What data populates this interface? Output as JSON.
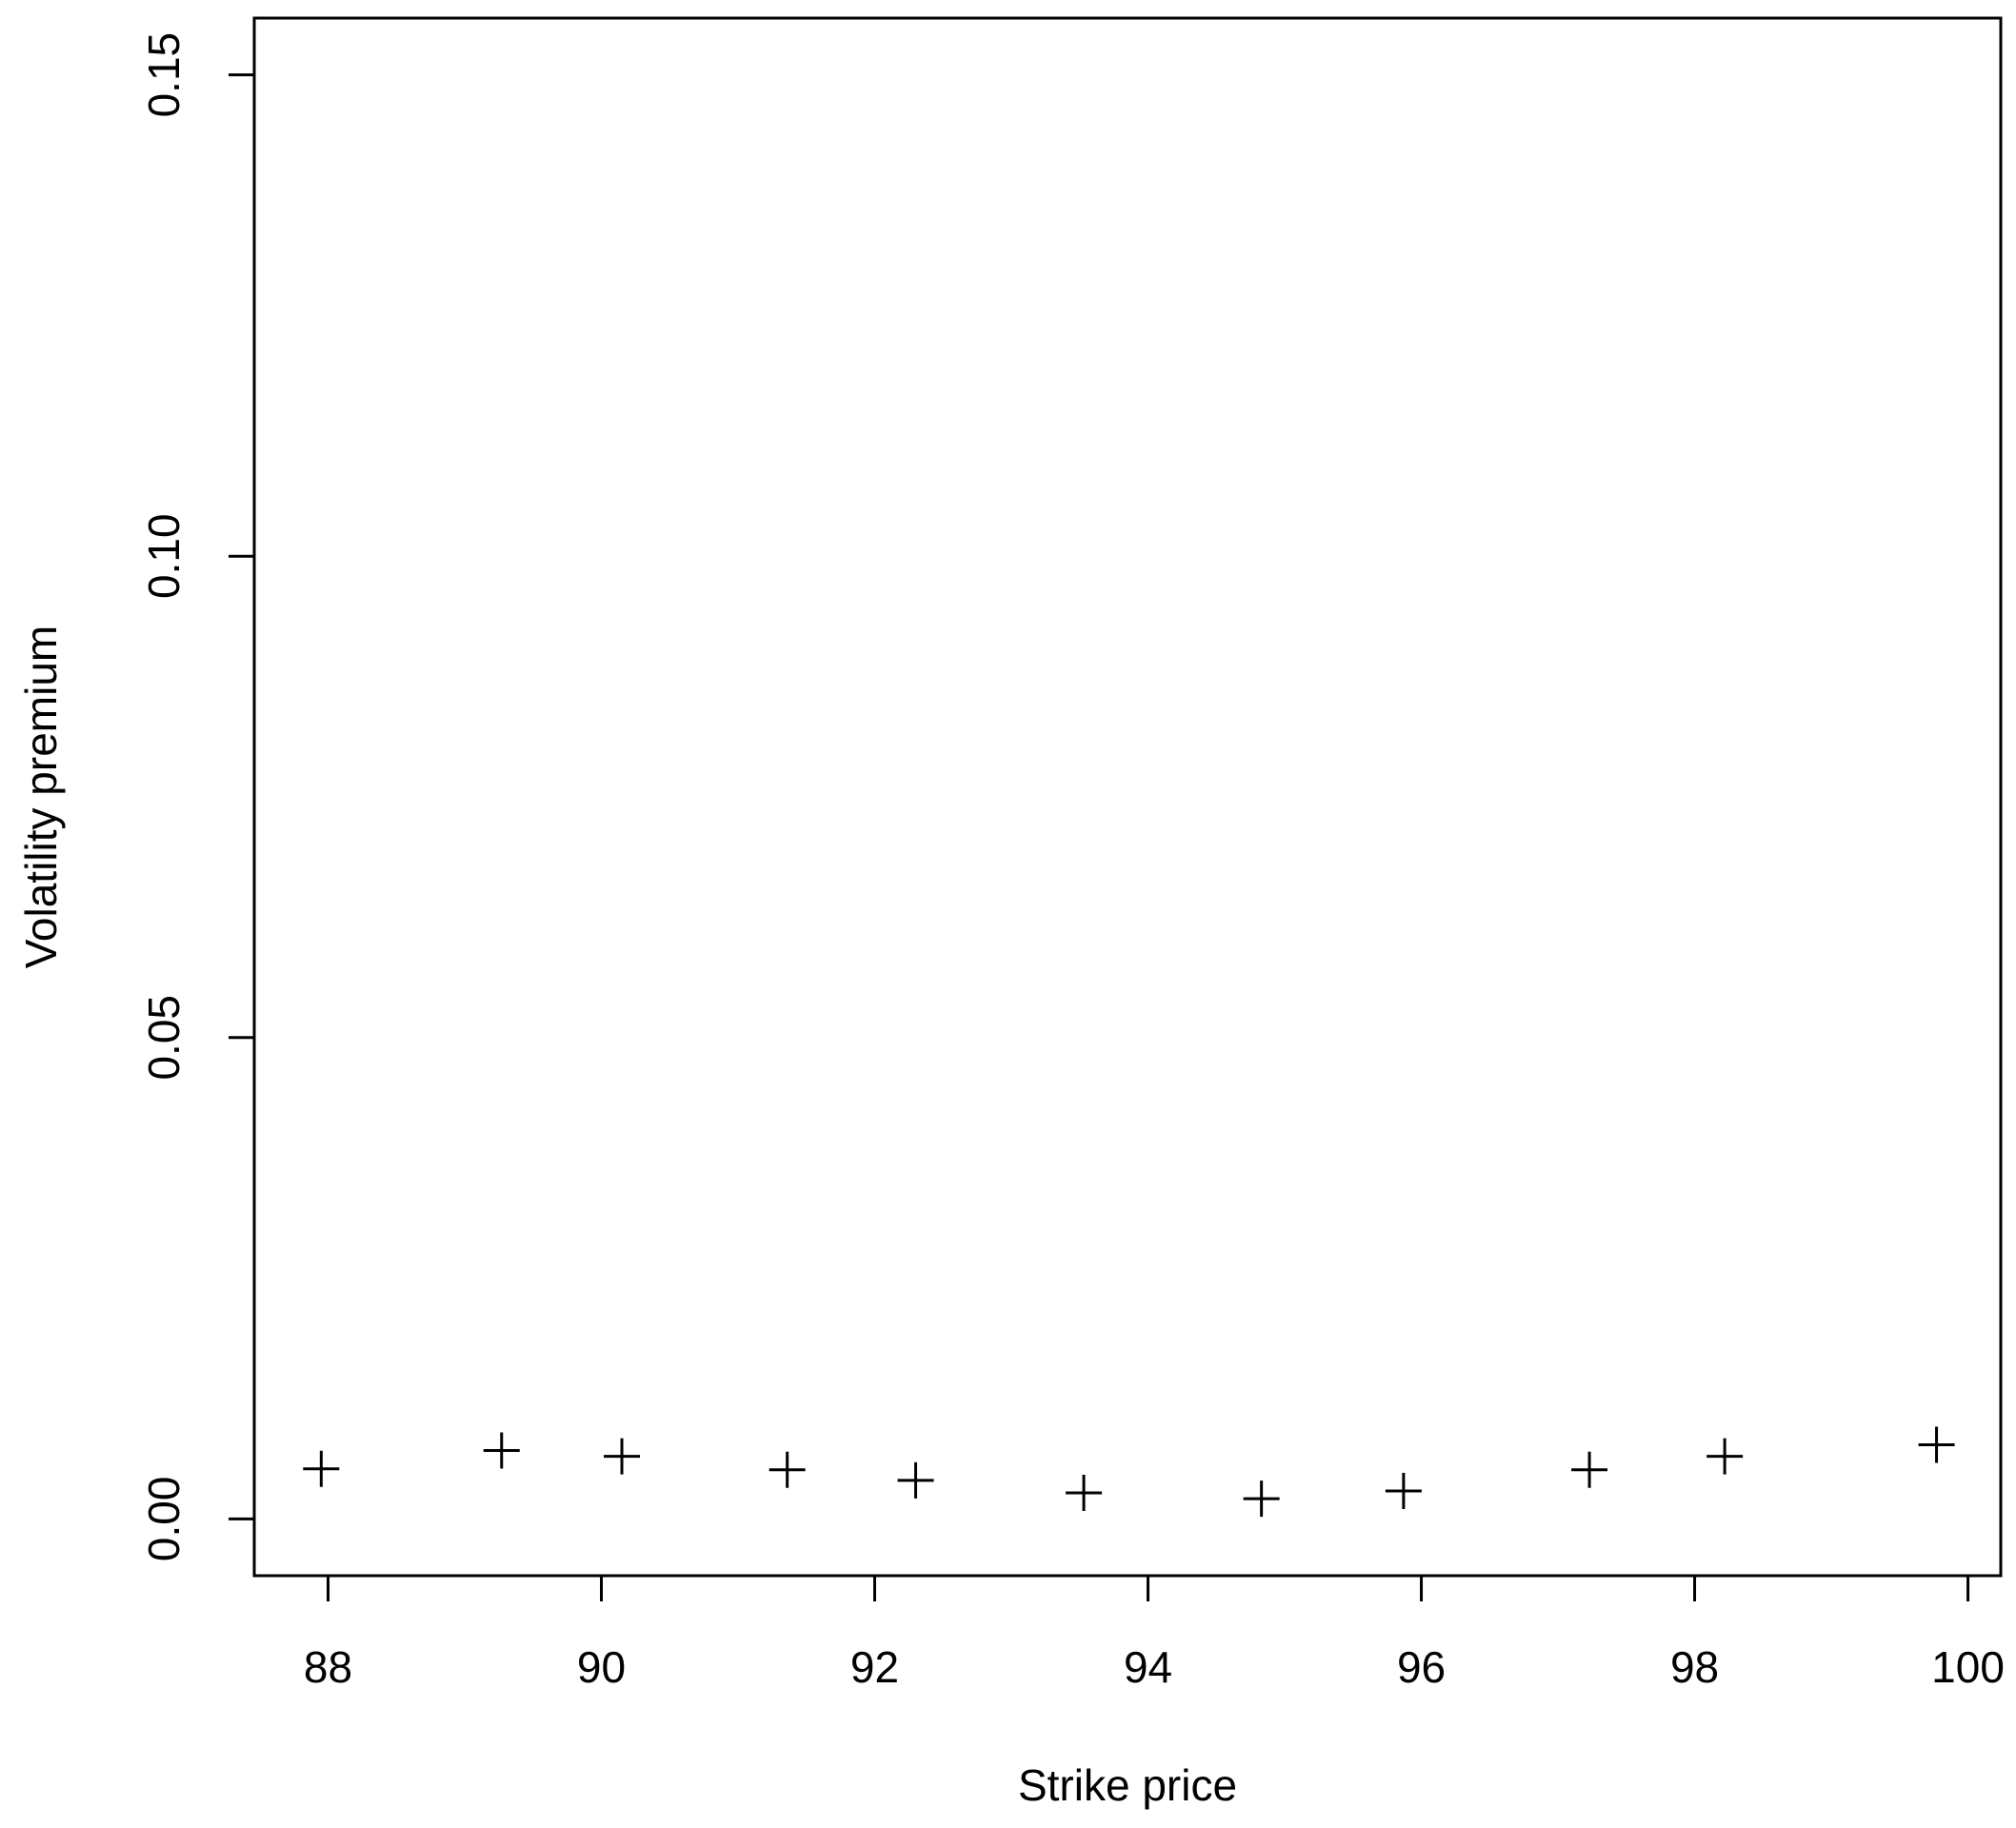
{
  "chart_data": {
    "type": "scatter",
    "x_label": "Strike price",
    "y_label": "Volatility premium",
    "series": [
      {
        "marker": "+",
        "color": "#000000",
        "x": [
          87.95,
          89.27,
          90.15,
          91.36,
          92.3,
          93.53,
          94.83,
          95.87,
          97.23,
          98.22,
          99.77
        ],
        "values": [
          0.0052,
          0.0071,
          0.0065,
          0.0051,
          0.004,
          0.0027,
          0.0021,
          0.0029,
          0.0051,
          0.0065,
          0.0077
        ]
      }
    ],
    "xlim": [
      87.46,
      100.24
    ],
    "xticks": [
      88,
      90,
      92,
      94,
      96,
      98,
      100
    ],
    "ylim": [
      -0.0059,
      0.1559
    ],
    "yticks": [
      {
        "value": 0,
        "label": "0.00"
      },
      0.05,
      {
        "value": 0.1,
        "label": "0.10"
      },
      0.15
    ],
    "grid": false
  }
}
